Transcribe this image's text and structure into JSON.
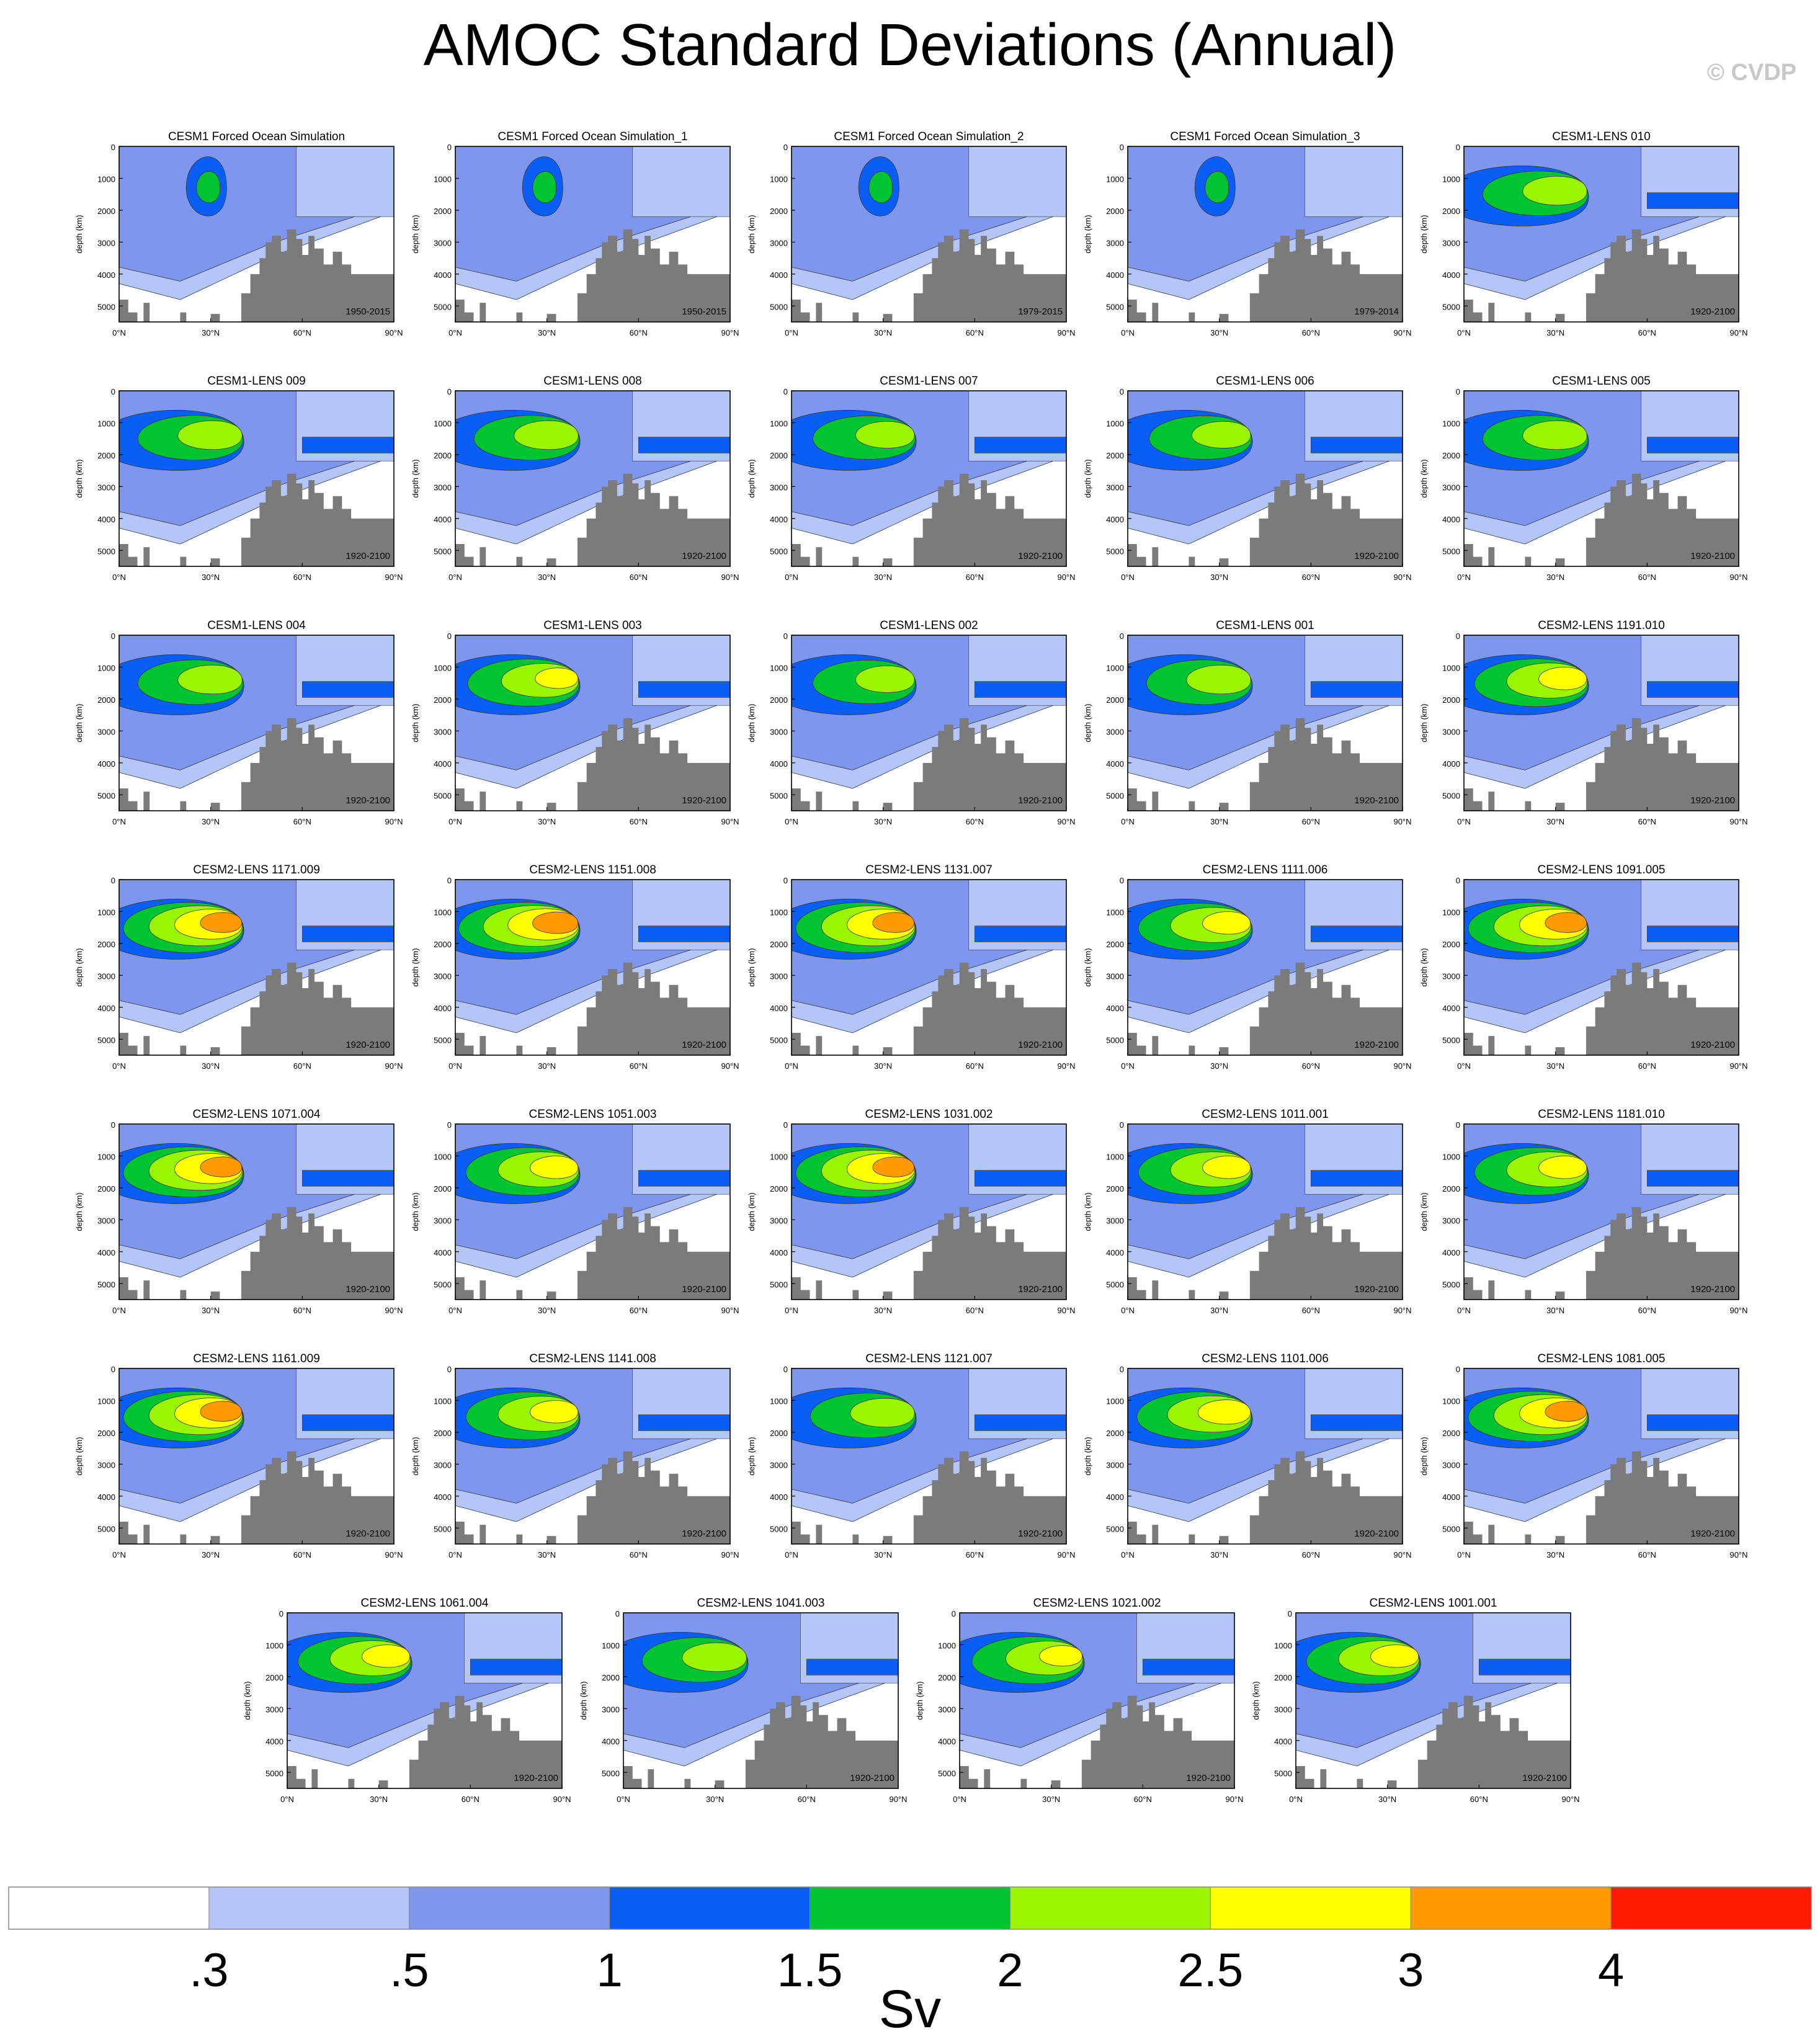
{
  "title": "AMOC Standard Deviations (Annual)",
  "watermark": "© CVDP",
  "chart_data": {
    "type": "heatmap",
    "description_level": "contour panels",
    "ylabel": "depth (km)",
    "yticks": [
      "0",
      "1000",
      "2000",
      "3000",
      "4000",
      "5000"
    ],
    "xticks": [
      "0°N",
      "30°N",
      "60°N",
      "90°N"
    ],
    "ylim": [
      0,
      5500
    ],
    "xlim": [
      0,
      90
    ],
    "panels": [
      {
        "title": "CESM1 Forced Ocean Simulation",
        "period": "1950-2015",
        "peak": 1.6
      },
      {
        "title": "CESM1 Forced Ocean Simulation_1",
        "period": "1950-2015",
        "peak": 1.6
      },
      {
        "title": "CESM1 Forced Ocean Simulation_2",
        "period": "1979-2015",
        "peak": 1.6
      },
      {
        "title": "CESM1 Forced Ocean Simulation_3",
        "period": "1979-2014",
        "peak": 1.6
      },
      {
        "title": "CESM1-LENS 010",
        "period": "1920-2100",
        "peak": 2.3
      },
      {
        "title": "CESM1-LENS 009",
        "period": "1920-2100",
        "peak": 2.3
      },
      {
        "title": "CESM1-LENS 008",
        "period": "1920-2100",
        "peak": 2.3
      },
      {
        "title": "CESM1-LENS 007",
        "period": "1920-2100",
        "peak": 2.2
      },
      {
        "title": "CESM1-LENS 006",
        "period": "1920-2100",
        "peak": 2.2
      },
      {
        "title": "CESM1-LENS 005",
        "period": "1920-2100",
        "peak": 2.3
      },
      {
        "title": "CESM1-LENS 004",
        "period": "1920-2100",
        "peak": 2.3
      },
      {
        "title": "CESM1-LENS 003",
        "period": "1920-2100",
        "peak": 2.6
      },
      {
        "title": "CESM1-LENS 002",
        "period": "1920-2100",
        "peak": 2.2
      },
      {
        "title": "CESM1-LENS 001",
        "period": "1920-2100",
        "peak": 2.3
      },
      {
        "title": "CESM2-LENS 1191.010",
        "period": "1920-2100",
        "peak": 2.7
      },
      {
        "title": "CESM2-LENS 1171.009",
        "period": "1920-2100",
        "peak": 3.2
      },
      {
        "title": "CESM2-LENS 1151.008",
        "period": "1920-2100",
        "peak": 3.3
      },
      {
        "title": "CESM2-LENS 1131.007",
        "period": "1920-2100",
        "peak": 3.2
      },
      {
        "title": "CESM2-LENS 1111.006",
        "period": "1920-2100",
        "peak": 2.7
      },
      {
        "title": "CESM2-LENS 1091.005",
        "period": "1920-2100",
        "peak": 3.2
      },
      {
        "title": "CESM2-LENS 1071.004",
        "period": "1920-2100",
        "peak": 3.2
      },
      {
        "title": "CESM2-LENS 1051.003",
        "period": "1920-2100",
        "peak": 2.7
      },
      {
        "title": "CESM2-LENS 1031.002",
        "period": "1920-2100",
        "peak": 3.2
      },
      {
        "title": "CESM2-LENS 1011.001",
        "period": "1920-2100",
        "peak": 2.7
      },
      {
        "title": "CESM2-LENS 1181.010",
        "period": "1920-2100",
        "peak": 2.7
      },
      {
        "title": "CESM2-LENS 1161.009",
        "period": "1920-2100",
        "peak": 3.2
      },
      {
        "title": "CESM2-LENS 1141.008",
        "period": "1920-2100",
        "peak": 2.7
      },
      {
        "title": "CESM2-LENS 1121.007",
        "period": "1920-2100",
        "peak": 2.3
      },
      {
        "title": "CESM2-LENS 1101.006",
        "period": "1920-2100",
        "peak": 2.8
      },
      {
        "title": "CESM2-LENS 1081.005",
        "period": "1920-2100",
        "peak": 3.2
      },
      {
        "title": "CESM2-LENS 1061.004",
        "period": "1920-2100",
        "peak": 2.7
      },
      {
        "title": "CESM2-LENS 1041.003",
        "period": "1920-2100",
        "peak": 2.3
      },
      {
        "title": "CESM2-LENS 1021.002",
        "period": "1920-2100",
        "peak": 2.6
      },
      {
        "title": "CESM2-LENS 1001.001",
        "period": "1920-2100",
        "peak": 2.7
      }
    ],
    "colorbar": {
      "label": "Sv",
      "tick_labels": [
        ".3",
        ".5",
        "1",
        "1.5",
        "2",
        "2.5",
        "3",
        "4"
      ],
      "levels": [
        0.3,
        0.5,
        1,
        1.5,
        2,
        2.5,
        3,
        4
      ],
      "colors": [
        "#ffffff",
        "#b3c6f7",
        "#7f96ef",
        "#0a5ef5",
        "#00c430",
        "#9cf500",
        "#ffff00",
        "#ff9a00",
        "#ff1a00"
      ]
    },
    "land_color": "#7b7b7b"
  }
}
